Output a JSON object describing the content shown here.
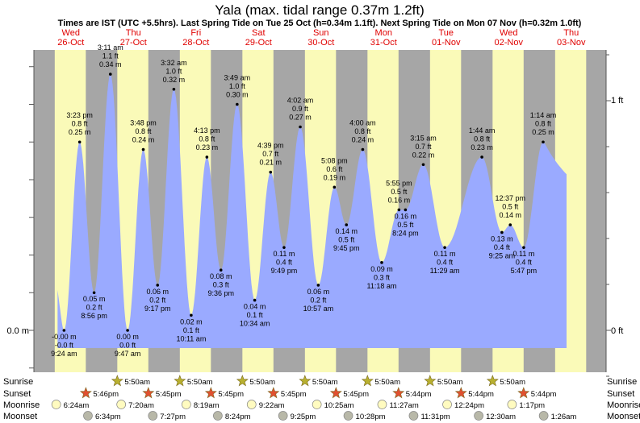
{
  "title": "Yala (max. tidal range 0.37m 1.2ft)",
  "subtitle": "Times are IST (UTC +5.5hrs). Last Spring Tide on Tue 25 Oct (h=0.34m 1.1ft). Next Spring Tide on Mon 07 Nov (h=0.32m 1.0ft)",
  "colors": {
    "day": "#fafab8",
    "night": "#a6a6a6",
    "tide": "#9aaaff",
    "day_label": "#e00000"
  },
  "days": [
    {
      "dow": "Wed",
      "date": "26-Oct"
    },
    {
      "dow": "Thu",
      "date": "27-Oct"
    },
    {
      "dow": "Fri",
      "date": "28-Oct"
    },
    {
      "dow": "Sat",
      "date": "29-Oct"
    },
    {
      "dow": "Sun",
      "date": "30-Oct"
    },
    {
      "dow": "Mon",
      "date": "31-Oct"
    },
    {
      "dow": "Tue",
      "date": "01-Nov"
    },
    {
      "dow": "Wed",
      "date": "02-Nov"
    },
    {
      "dow": "Thu",
      "date": "03-Nov"
    }
  ],
  "axis": {
    "left_zero": "0.0 m",
    "right_zero": "0 ft",
    "right_one": "1 ft"
  },
  "chart_data": {
    "type": "area",
    "ylabel_left": "m",
    "ylabel_right": "ft",
    "ylim": [
      -0.07,
      0.38
    ],
    "series": [
      {
        "points": [
          {
            "day": 0,
            "time": "9:24 am",
            "m": "-0.00 m",
            "ft": "-0.0 ft",
            "h": 0.0,
            "hl": "low"
          },
          {
            "day": 0,
            "time": "3:23 pm",
            "m": "0.25 m",
            "ft": "0.8 ft",
            "h": 0.25,
            "hl": "high"
          },
          {
            "day": 0,
            "time": "8:56 pm",
            "m": "0.05 m",
            "ft": "0.2 ft",
            "h": 0.05,
            "hl": "low"
          },
          {
            "day": 1,
            "time": "3:11 am",
            "m": "0.34 m",
            "ft": "1.1 ft",
            "h": 0.34,
            "hl": "high"
          },
          {
            "day": 1,
            "time": "9:47 am",
            "m": "0.00 m",
            "ft": "0.0 ft",
            "h": 0.0,
            "hl": "low"
          },
          {
            "day": 1,
            "time": "3:48 pm",
            "m": "0.24 m",
            "ft": "0.8 ft",
            "h": 0.24,
            "hl": "high"
          },
          {
            "day": 1,
            "time": "9:17 pm",
            "m": "0.06 m",
            "ft": "0.2 ft",
            "h": 0.06,
            "hl": "low"
          },
          {
            "day": 2,
            "time": "3:32 am",
            "m": "0.32 m",
            "ft": "1.0 ft",
            "h": 0.32,
            "hl": "high"
          },
          {
            "day": 2,
            "time": "10:11 am",
            "m": "0.02 m",
            "ft": "0.1 ft",
            "h": 0.02,
            "hl": "low"
          },
          {
            "day": 2,
            "time": "4:13 pm",
            "m": "0.23 m",
            "ft": "0.8 ft",
            "h": 0.23,
            "hl": "high"
          },
          {
            "day": 2,
            "time": "9:36 pm",
            "m": "0.08 m",
            "ft": "0.3 ft",
            "h": 0.08,
            "hl": "low"
          },
          {
            "day": 3,
            "time": "3:49 am",
            "m": "0.30 m",
            "ft": "1.0 ft",
            "h": 0.3,
            "hl": "high"
          },
          {
            "day": 3,
            "time": "10:34 am",
            "m": "0.04 m",
            "ft": "0.1 ft",
            "h": 0.04,
            "hl": "low"
          },
          {
            "day": 3,
            "time": "4:39 pm",
            "m": "0.21 m",
            "ft": "0.7 ft",
            "h": 0.21,
            "hl": "high"
          },
          {
            "day": 3,
            "time": "9:49 pm",
            "m": "0.11 m",
            "ft": "0.4 ft",
            "h": 0.11,
            "hl": "low"
          },
          {
            "day": 4,
            "time": "4:02 am",
            "m": "0.27 m",
            "ft": "0.9 ft",
            "h": 0.27,
            "hl": "high"
          },
          {
            "day": 4,
            "time": "10:57 am",
            "m": "0.06 m",
            "ft": "0.2 ft",
            "h": 0.06,
            "hl": "low"
          },
          {
            "day": 4,
            "time": "5:08 pm",
            "m": "0.19 m",
            "ft": "0.6 ft",
            "h": 0.19,
            "hl": "high"
          },
          {
            "day": 4,
            "time": "9:45 pm",
            "m": "0.14 m",
            "ft": "0.5 ft",
            "h": 0.14,
            "hl": "low"
          },
          {
            "day": 5,
            "time": "4:00 am",
            "m": "0.24 m",
            "ft": "0.8 ft",
            "h": 0.24,
            "hl": "high"
          },
          {
            "day": 5,
            "time": "11:18 am",
            "m": "0.09 m",
            "ft": "0.3 ft",
            "h": 0.09,
            "hl": "low"
          },
          {
            "day": 5,
            "time": "5:55 pm",
            "m": "0.16 m",
            "ft": "0.5 ft",
            "h": 0.16,
            "hl": "high"
          },
          {
            "day": 5,
            "time": "8:24 pm",
            "m": "0.16 m",
            "ft": "0.5 ft",
            "h": 0.16,
            "hl": "low"
          },
          {
            "day": 6,
            "time": "3:15 am",
            "m": "0.22 m",
            "ft": "0.7 ft",
            "h": 0.22,
            "hl": "high"
          },
          {
            "day": 6,
            "time": "11:29 am",
            "m": "0.11 m",
            "ft": "0.4 ft",
            "h": 0.11,
            "hl": "low"
          },
          {
            "day": 7,
            "time": "1:44 am",
            "m": "0.23 m",
            "ft": "0.8 ft",
            "h": 0.23,
            "hl": "high"
          },
          {
            "day": 7,
            "time": "9:25 am",
            "m": "0.13 m",
            "ft": "0.4 ft",
            "h": 0.13,
            "hl": "low"
          },
          {
            "day": 7,
            "time": "12:37 pm",
            "m": "0.14 m",
            "ft": "0.5 ft",
            "h": 0.14,
            "hl": "high"
          },
          {
            "day": 7,
            "time": "5:47 pm",
            "m": "0.11 m",
            "ft": "0.4 ft",
            "h": 0.11,
            "hl": "low"
          },
          {
            "day": 8,
            "time": "1:14 am",
            "m": "0.25 m",
            "ft": "0.8 ft",
            "h": 0.25,
            "hl": "high"
          }
        ]
      }
    ]
  },
  "astro": {
    "labels": {
      "sunrise": "Sunrise",
      "sunset": "Sunset",
      "moonrise": "Moonrise",
      "moonset": "Moonset"
    },
    "sunrise": [
      "5:50am",
      "5:50am",
      "5:50am",
      "5:50am",
      "5:50am",
      "5:50am",
      "5:50am"
    ],
    "sunset": [
      "5:46pm",
      "5:45pm",
      "5:45pm",
      "5:45pm",
      "5:45pm",
      "5:44pm",
      "5:44pm",
      "5:44pm"
    ],
    "moonrise": [
      "6:24am",
      "7:20am",
      "8:19am",
      "9:22am",
      "10:25am",
      "11:27am",
      "12:24pm",
      "1:17pm"
    ],
    "moonset": [
      "6:34pm",
      "7:27pm",
      "8:24pm",
      "9:25pm",
      "10:28pm",
      "11:31pm",
      "12:30am",
      "1:26am"
    ],
    "sunrise_day": [
      1,
      2,
      3,
      4,
      5,
      6,
      7
    ],
    "sunset_day": [
      0,
      1,
      2,
      3,
      4,
      5,
      6,
      7
    ],
    "moonrise_day": [
      0,
      1,
      2,
      3,
      4,
      5,
      6,
      7
    ],
    "moonset_day": [
      0,
      1,
      2,
      3,
      4,
      5,
      7,
      8
    ]
  }
}
